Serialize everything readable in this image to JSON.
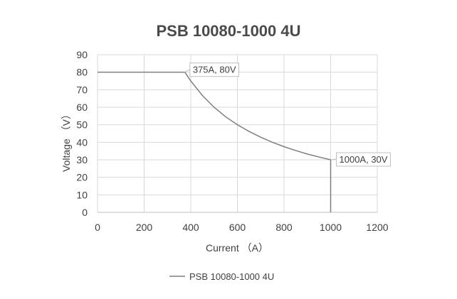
{
  "chart_data": {
    "type": "line",
    "title": "PSB 10080-1000 4U",
    "xlabel": "Current （A）",
    "ylabel": "Voltage （V）",
    "xlim": [
      0,
      1200
    ],
    "ylim": [
      0,
      90
    ],
    "x_ticks": [
      "0",
      "200",
      "400",
      "600",
      "800",
      "1000",
      "1200"
    ],
    "y_ticks": [
      "0",
      "10",
      "20",
      "30",
      "40",
      "50",
      "60",
      "70",
      "80",
      "90"
    ],
    "grid": true,
    "legend_position": "bottom",
    "series": [
      {
        "name": "PSB 10080-1000 4U",
        "color": "#7f7f7f",
        "points": [
          [
            0,
            80
          ],
          [
            375,
            80
          ],
          [
            400,
            75
          ],
          [
            450,
            66.7
          ],
          [
            500,
            60
          ],
          [
            550,
            54.5
          ],
          [
            600,
            50
          ],
          [
            650,
            46.2
          ],
          [
            700,
            42.9
          ],
          [
            750,
            40
          ],
          [
            800,
            37.5
          ],
          [
            850,
            35.3
          ],
          [
            900,
            33.3
          ],
          [
            950,
            31.6
          ],
          [
            1000,
            30
          ],
          [
            1000,
            0
          ]
        ]
      }
    ],
    "annotations": [
      {
        "text": "375A, 80V",
        "x": 375,
        "y": 80
      },
      {
        "text": "1000A, 30V",
        "x": 1000,
        "y": 30
      }
    ]
  }
}
